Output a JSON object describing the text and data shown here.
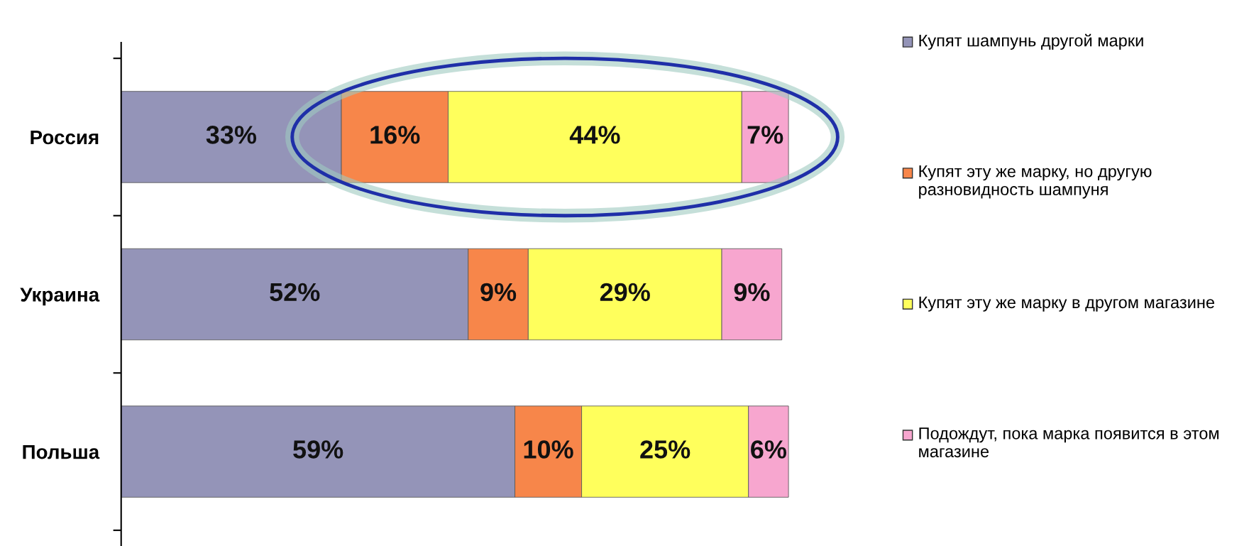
{
  "chart_data": {
    "type": "bar",
    "orientation": "horizontal",
    "stacked": true,
    "categories": [
      "Россия",
      "Украина",
      "Польша"
    ],
    "series": [
      {
        "name": "Купят шампунь другой марки",
        "color": "#9494b8",
        "values": [
          33,
          52,
          59
        ],
        "value_labels": [
          "33%",
          "52%",
          "59%"
        ]
      },
      {
        "name": "Купят эту же марку, но другую разновидность шампуня",
        "color": "#f7864a",
        "values": [
          16,
          9,
          10
        ],
        "value_labels": [
          "16%",
          "9%",
          "10%"
        ]
      },
      {
        "name": "Купят эту же марку в другом магазине",
        "color": "#ffff5c",
        "values": [
          44,
          29,
          25
        ],
        "value_labels": [
          "44%",
          "29%",
          "25%"
        ]
      },
      {
        "name": "Подождут, пока марка появится в этом магазине",
        "color": "#f7a6cf",
        "values": [
          7,
          9,
          6
        ],
        "value_labels": [
          "7%",
          "9%",
          "6%"
        ]
      }
    ],
    "legend": "right"
  }
}
